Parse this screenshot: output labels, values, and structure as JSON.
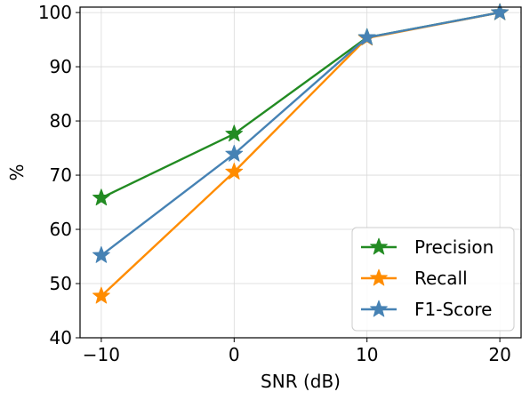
{
  "chart_data": {
    "type": "line",
    "title": "",
    "xlabel": "SNR (dB)",
    "ylabel": "%",
    "x": [
      -10,
      0,
      10,
      20
    ],
    "x_tick_labels": [
      "−10",
      "0",
      "10",
      "20"
    ],
    "y_tick_labels": [
      "40",
      "50",
      "60",
      "70",
      "80",
      "90",
      "100"
    ],
    "xlim": [
      -11.6,
      21.6
    ],
    "ylim": [
      40,
      101
    ],
    "yticks": [
      40,
      50,
      60,
      70,
      80,
      90,
      100
    ],
    "grid": true,
    "legend_position": "bottom-right",
    "marker": "star",
    "series": [
      {
        "name": "Precision",
        "color": "#228B22",
        "values": [
          65.8,
          77.6,
          95.4,
          100
        ]
      },
      {
        "name": "Recall",
        "color": "#FF8C00",
        "values": [
          47.7,
          70.6,
          95.3,
          100
        ]
      },
      {
        "name": "F1-Score",
        "color": "#4682B4",
        "values": [
          55.2,
          73.9,
          95.4,
          100
        ]
      }
    ]
  }
}
